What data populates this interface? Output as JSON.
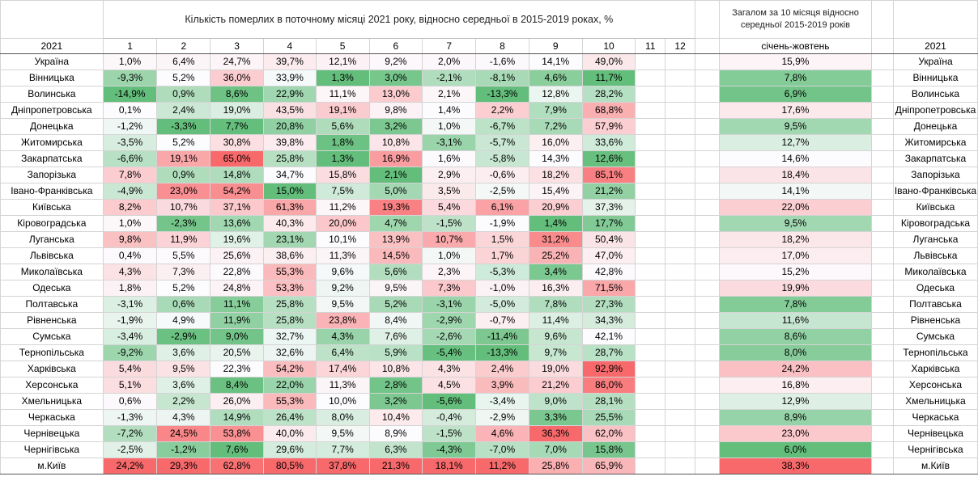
{
  "title": "Кількість померлих в поточному місяці 2021 року, відносно середньої в 2015-2019 роках, %",
  "side_title": "Загалом за 10 місяця відносно середньої 2015-2019 років",
  "year_label": "2021",
  "months": [
    "1",
    "2",
    "3",
    "4",
    "5",
    "6",
    "7",
    "8",
    "9",
    "10",
    "11",
    "12"
  ],
  "period_label": "січень-жовтень",
  "colors": {
    "green": "#63be7b",
    "red": "#f8696b",
    "white": "#fcfcff"
  },
  "rows": [
    {
      "region": "Україна",
      "values": [
        "1,0%",
        "6,4%",
        "24,7%",
        "39,7%",
        "12,1%",
        "9,2%",
        "2,0%",
        "-1,6%",
        "14,1%",
        "49,0%"
      ],
      "total": "15,9%"
    },
    {
      "region": "Вінницька",
      "values": [
        "-9,3%",
        "5,2%",
        "36,0%",
        "33,9%",
        "1,3%",
        "3,0%",
        "-2,1%",
        "-8,1%",
        "4,6%",
        "11,7%"
      ],
      "total": "7,8%"
    },
    {
      "region": "Волинська",
      "values": [
        "-14,9%",
        "0,9%",
        "8,6%",
        "22,9%",
        "11,1%",
        "13,0%",
        "2,1%",
        "-13,3%",
        "12,8%",
        "28,2%"
      ],
      "total": "6,9%"
    },
    {
      "region": "Дніпропетровська",
      "values": [
        "0,1%",
        "2,4%",
        "19,0%",
        "43,5%",
        "19,1%",
        "9,8%",
        "1,4%",
        "2,2%",
        "7,9%",
        "68,8%"
      ],
      "total": "17,6%"
    },
    {
      "region": "Донецька",
      "values": [
        "-1,2%",
        "-3,3%",
        "7,7%",
        "20,8%",
        "5,6%",
        "3,2%",
        "1,0%",
        "-6,7%",
        "7,2%",
        "57,9%"
      ],
      "total": "9,5%"
    },
    {
      "region": "Житомирська",
      "values": [
        "-3,5%",
        "5,2%",
        "30,8%",
        "39,8%",
        "1,8%",
        "10,8%",
        "-3,1%",
        "-5,7%",
        "16,0%",
        "33,6%"
      ],
      "total": "12,7%"
    },
    {
      "region": "Закарпатська",
      "values": [
        "-6,6%",
        "19,1%",
        "65,0%",
        "25,8%",
        "1,3%",
        "16,9%",
        "1,6%",
        "-5,8%",
        "14,3%",
        "12,6%"
      ],
      "total": "14,6%"
    },
    {
      "region": "Запорізька",
      "values": [
        "7,8%",
        "0,9%",
        "14,8%",
        "34,7%",
        "15,8%",
        "2,1%",
        "2,9%",
        "-0,6%",
        "18,2%",
        "85,1%"
      ],
      "total": "18,4%"
    },
    {
      "region": "Івано-Франківська",
      "values": [
        "-4,9%",
        "23,0%",
        "54,2%",
        "15,0%",
        "7,5%",
        "5,0%",
        "3,5%",
        "-2,5%",
        "15,4%",
        "21,2%"
      ],
      "total": "14,1%"
    },
    {
      "region": "Київська",
      "values": [
        "8,2%",
        "10,7%",
        "37,1%",
        "61,3%",
        "11,2%",
        "19,3%",
        "5,4%",
        "6,1%",
        "20,9%",
        "37,3%"
      ],
      "total": "22,0%"
    },
    {
      "region": "Кіровоградська",
      "values": [
        "1,0%",
        "-2,3%",
        "13,6%",
        "40,3%",
        "20,0%",
        "4,7%",
        "-1,5%",
        "-1,9%",
        "1,4%",
        "17,7%"
      ],
      "total": "9,5%"
    },
    {
      "region": "Луганська",
      "values": [
        "9,8%",
        "11,9%",
        "19,6%",
        "23,1%",
        "10,1%",
        "13,9%",
        "10,7%",
        "1,5%",
        "31,2%",
        "50,4%"
      ],
      "total": "18,2%"
    },
    {
      "region": "Львівська",
      "values": [
        "0,4%",
        "5,5%",
        "25,6%",
        "38,6%",
        "11,3%",
        "14,5%",
        "1,0%",
        "1,7%",
        "25,2%",
        "47,0%"
      ],
      "total": "17,0%"
    },
    {
      "region": "Миколаївська",
      "values": [
        "4,3%",
        "7,3%",
        "22,8%",
        "55,3%",
        "9,6%",
        "5,6%",
        "2,3%",
        "-5,3%",
        "3,4%",
        "42,8%"
      ],
      "total": "15,2%"
    },
    {
      "region": "Одеська",
      "values": [
        "1,8%",
        "5,2%",
        "24,8%",
        "53,3%",
        "9,2%",
        "9,5%",
        "7,3%",
        "-1,0%",
        "16,3%",
        "71,5%"
      ],
      "total": "19,9%"
    },
    {
      "region": "Полтавська",
      "values": [
        "-3,1%",
        "0,6%",
        "11,1%",
        "25,8%",
        "9,5%",
        "5,2%",
        "-3,1%",
        "-5,0%",
        "7,8%",
        "27,3%"
      ],
      "total": "7,8%"
    },
    {
      "region": "Рівненська",
      "values": [
        "-1,9%",
        "4,9%",
        "11,9%",
        "25,8%",
        "23,8%",
        "8,4%",
        "-2,9%",
        "-0,7%",
        "11,4%",
        "34,3%"
      ],
      "total": "11,6%"
    },
    {
      "region": "Сумська",
      "values": [
        "-3,4%",
        "-2,9%",
        "9,0%",
        "32,7%",
        "4,3%",
        "7,6%",
        "-2,6%",
        "-11,4%",
        "9,6%",
        "42,1%"
      ],
      "total": "8,6%"
    },
    {
      "region": "Тернопільська",
      "values": [
        "-9,2%",
        "3,6%",
        "20,5%",
        "32,6%",
        "6,4%",
        "5,9%",
        "-5,4%",
        "-13,3%",
        "9,7%",
        "28,7%"
      ],
      "total": "8,0%"
    },
    {
      "region": "Харківська",
      "values": [
        "5,4%",
        "9,5%",
        "22,3%",
        "54,2%",
        "17,4%",
        "10,8%",
        "4,3%",
        "2,4%",
        "19,0%",
        "92,9%"
      ],
      "total": "24,2%"
    },
    {
      "region": "Херсонська",
      "values": [
        "5,1%",
        "3,6%",
        "8,4%",
        "22,0%",
        "11,3%",
        "2,8%",
        "4,5%",
        "3,9%",
        "21,2%",
        "86,0%"
      ],
      "total": "16,8%"
    },
    {
      "region": "Хмельницька",
      "values": [
        "0,6%",
        "2,2%",
        "26,0%",
        "55,3%",
        "10,0%",
        "3,2%",
        "-5,6%",
        "-3,4%",
        "9,0%",
        "28,1%"
      ],
      "total": "12,9%"
    },
    {
      "region": "Черкаська",
      "values": [
        "-1,3%",
        "4,3%",
        "14,9%",
        "26,4%",
        "8,0%",
        "10,4%",
        "-0,4%",
        "-2,9%",
        "3,3%",
        "25,5%"
      ],
      "total": "8,9%"
    },
    {
      "region": "Чернівецька",
      "values": [
        "-7,2%",
        "24,5%",
        "53,8%",
        "40,0%",
        "9,5%",
        "8,9%",
        "-1,5%",
        "4,6%",
        "36,3%",
        "62,0%"
      ],
      "total": "23,0%"
    },
    {
      "region": "Чернігівська",
      "values": [
        "-2,5%",
        "-1,2%",
        "7,6%",
        "29,6%",
        "7,7%",
        "6,3%",
        "-4,3%",
        "-7,0%",
        "7,0%",
        "15,8%"
      ],
      "total": "6,0%"
    },
    {
      "region": "м.Київ",
      "values": [
        "24,2%",
        "29,3%",
        "62,8%",
        "80,5%",
        "37,8%",
        "21,3%",
        "18,1%",
        "11,2%",
        "25,8%",
        "65,9%"
      ],
      "total": "38,3%"
    }
  ]
}
